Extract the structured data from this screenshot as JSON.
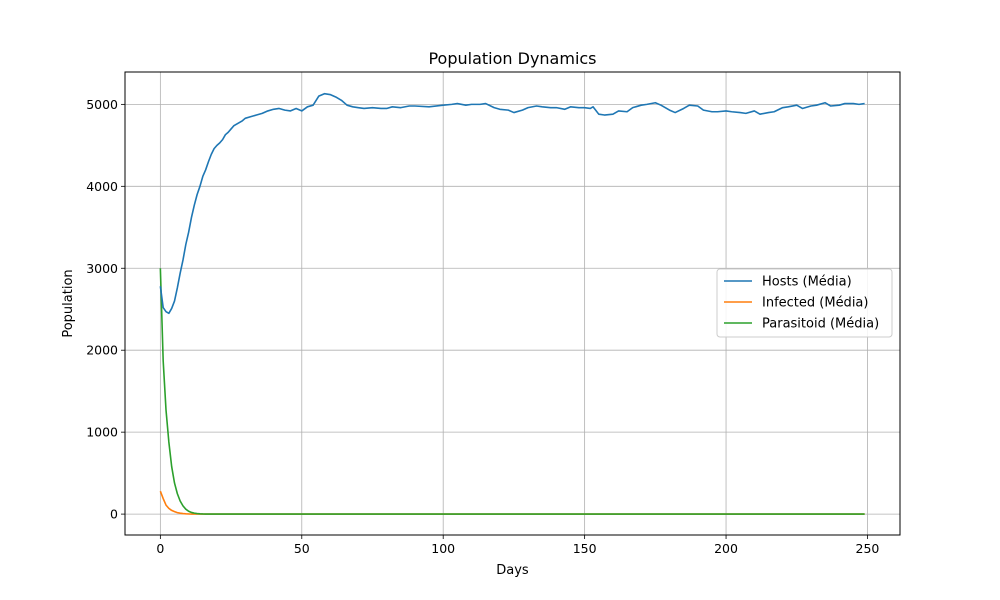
{
  "chart_data": {
    "type": "line",
    "title": "Population Dynamics",
    "xlabel": "Days",
    "ylabel": "Population",
    "xlim": [
      -12.5,
      261.5
    ],
    "ylim": [
      -255,
      5395
    ],
    "xticks": [
      0,
      50,
      100,
      150,
      200,
      250
    ],
    "yticks": [
      0,
      1000,
      2000,
      3000,
      4000,
      5000
    ],
    "grid": true,
    "legend_position": "center-right",
    "series": [
      {
        "name": "Hosts (Média)",
        "color": "#1f77b4",
        "x": [
          0,
          1,
          2,
          3,
          4,
          5,
          6,
          7,
          8,
          9,
          10,
          11,
          12,
          13,
          14,
          15,
          16,
          17,
          18,
          19,
          20,
          21,
          22,
          23,
          24,
          25,
          26,
          27,
          28,
          29,
          30,
          32,
          34,
          36,
          38,
          40,
          42,
          44,
          46,
          48,
          50,
          52,
          54,
          56,
          58,
          60,
          62,
          64,
          66,
          68,
          70,
          72,
          75,
          78,
          80,
          82,
          85,
          88,
          90,
          95,
          100,
          103,
          105,
          108,
          110,
          113,
          115,
          118,
          120,
          123,
          125,
          128,
          130,
          133,
          135,
          138,
          140,
          143,
          145,
          148,
          150,
          152,
          153,
          155,
          157,
          160,
          162,
          165,
          167,
          170,
          172,
          175,
          177,
          180,
          182,
          185,
          187,
          190,
          192,
          195,
          197,
          200,
          202,
          205,
          207,
          210,
          212,
          215,
          217,
          220,
          222,
          225,
          227,
          230,
          232,
          235,
          237,
          240,
          242,
          245,
          247,
          249
        ],
        "y": [
          2780,
          2520,
          2470,
          2450,
          2510,
          2600,
          2760,
          2940,
          3100,
          3290,
          3440,
          3620,
          3770,
          3900,
          4000,
          4120,
          4200,
          4300,
          4390,
          4460,
          4500,
          4530,
          4570,
          4630,
          4660,
          4700,
          4740,
          4760,
          4780,
          4800,
          4830,
          4850,
          4870,
          4890,
          4920,
          4940,
          4950,
          4930,
          4920,
          4950,
          4920,
          4970,
          4990,
          5100,
          5130,
          5120,
          5090,
          5050,
          4990,
          4970,
          4960,
          4950,
          4960,
          4950,
          4950,
          4970,
          4960,
          4980,
          4980,
          4970,
          4990,
          5000,
          5010,
          4990,
          5000,
          5000,
          5010,
          4960,
          4940,
          4930,
          4900,
          4930,
          4960,
          4980,
          4970,
          4960,
          4960,
          4940,
          4970,
          4960,
          4960,
          4950,
          4970,
          4880,
          4870,
          4880,
          4920,
          4910,
          4960,
          4990,
          5000,
          5020,
          4990,
          4930,
          4900,
          4950,
          4990,
          4980,
          4930,
          4910,
          4910,
          4920,
          4910,
          4900,
          4890,
          4920,
          4880,
          4900,
          4910,
          4960,
          4970,
          4990,
          4950,
          4980,
          4990,
          5020,
          4980,
          4990,
          5010,
          5010,
          5000,
          5010
        ]
      },
      {
        "name": "Infected (Média)",
        "color": "#ff7f0e",
        "x": [
          0,
          1,
          2,
          3,
          4,
          5,
          6,
          7,
          8,
          9,
          10,
          11,
          12,
          13,
          14,
          15,
          16,
          18,
          20,
          30,
          50,
          100,
          150,
          200,
          249
        ],
        "y": [
          280,
          190,
          110,
          70,
          45,
          30,
          18,
          11,
          7,
          4,
          2,
          1,
          0,
          0,
          0,
          0,
          0,
          0,
          0,
          0,
          0,
          0,
          0,
          0,
          0
        ],
        "series_note_unused": null
      },
      {
        "name": "Parasitoid (Média)",
        "color": "#2ca02c",
        "x": [
          0,
          1,
          2,
          3,
          4,
          5,
          6,
          7,
          8,
          9,
          10,
          11,
          12,
          13,
          14,
          15,
          16,
          17,
          18,
          20,
          25,
          30,
          50,
          100,
          150,
          200,
          249
        ],
        "y": [
          3000,
          1870,
          1270,
          880,
          580,
          380,
          250,
          160,
          100,
          60,
          35,
          20,
          12,
          7,
          4,
          2,
          1,
          0,
          0,
          0,
          0,
          0,
          0,
          0,
          0,
          0,
          0
        ]
      }
    ]
  }
}
